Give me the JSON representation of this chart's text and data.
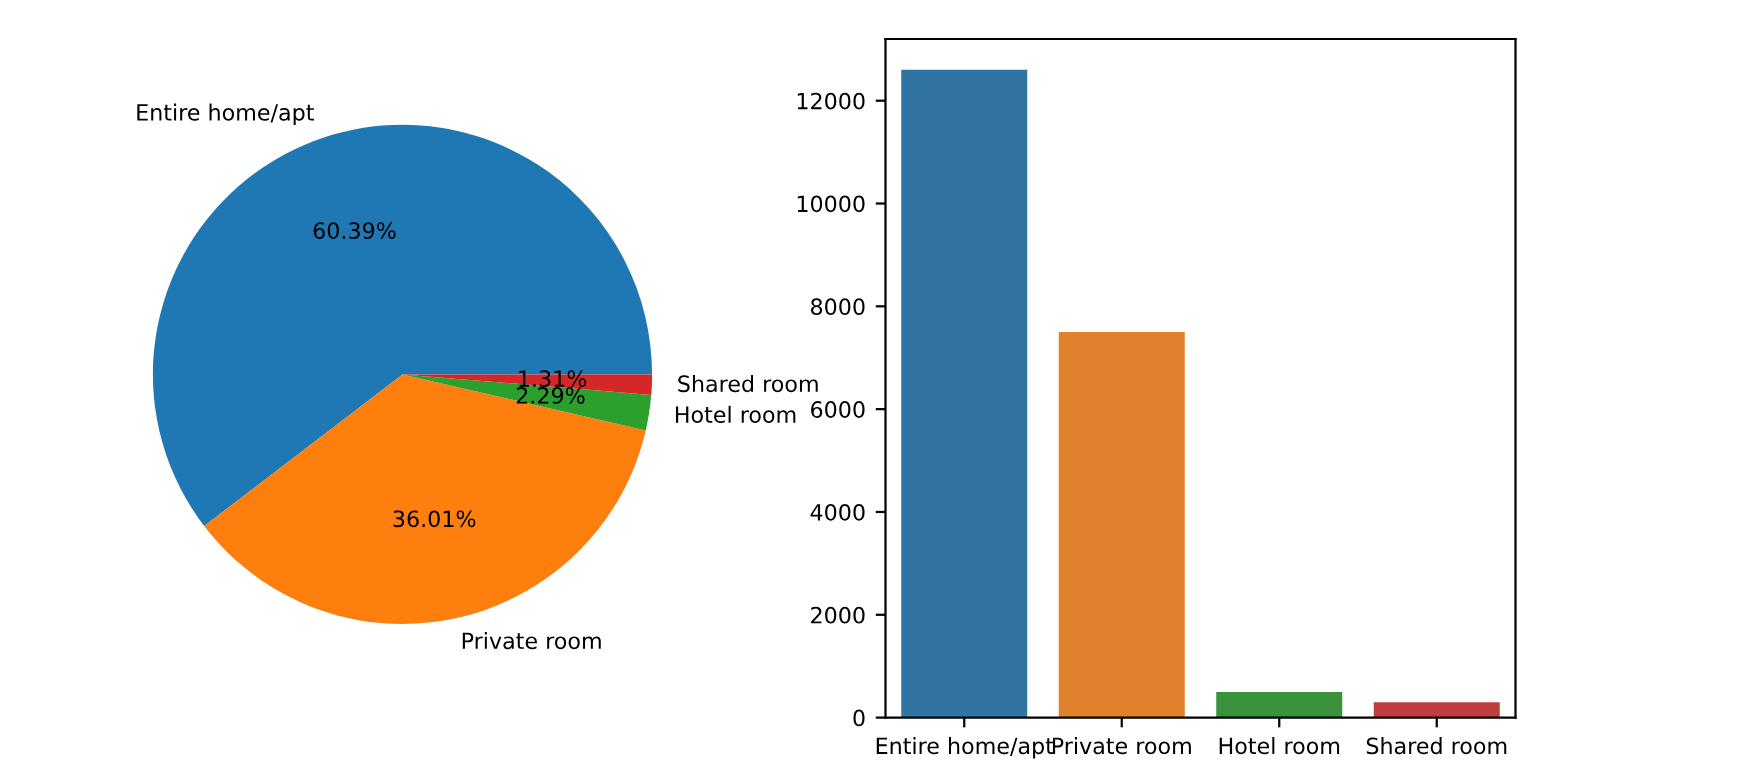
{
  "chart_data": [
    {
      "type": "pie",
      "categories": [
        "Entire home/apt",
        "Private room",
        "Hotel room",
        "Shared room"
      ],
      "values": [
        60.39,
        36.01,
        2.29,
        1.31
      ],
      "colors": [
        "#1f77b4",
        "#ff7f0e",
        "#2ca02c",
        "#d62728"
      ],
      "value_labels": [
        "60.39%",
        "36.01%",
        "2.29%",
        "1.31%"
      ]
    },
    {
      "type": "bar",
      "categories": [
        "Entire home/apt",
        "Private room",
        "Hotel room",
        "Shared room"
      ],
      "values": [
        12600,
        7500,
        500,
        300
      ],
      "colors": [
        "#3274a1",
        "#e1812c",
        "#3a923a",
        "#c03d3e"
      ],
      "ylim": [
        0,
        13200
      ],
      "yticks": [
        0,
        2000,
        4000,
        6000,
        8000,
        10000,
        12000
      ],
      "grid": false
    }
  ]
}
